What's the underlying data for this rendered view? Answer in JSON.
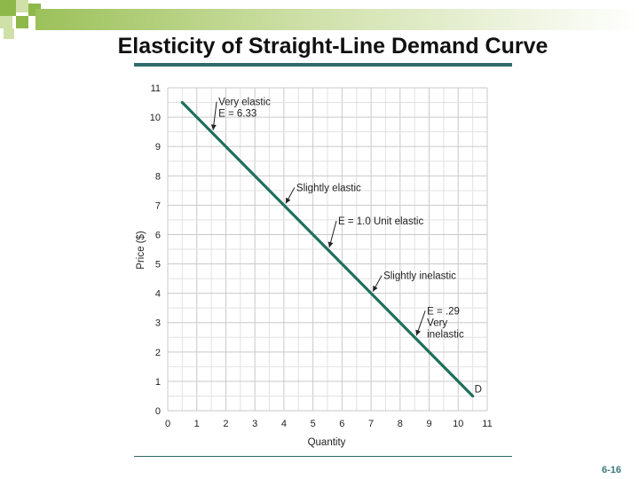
{
  "slide": {
    "title": "Elasticity of Straight-Line Demand Curve",
    "page_number": "6-16",
    "accent_color": "#8fb84a",
    "rule_color": "#2e6b6b"
  },
  "chart_data": {
    "type": "line",
    "xlabel": "Quantity",
    "ylabel": "Price ($)",
    "xlim": [
      0,
      11
    ],
    "ylim": [
      0,
      11
    ],
    "xticks": [
      "0",
      "1",
      "2",
      "3",
      "4",
      "5",
      "6",
      "7",
      "8",
      "9",
      "10",
      "11"
    ],
    "yticks": [
      "0",
      "1",
      "2",
      "3",
      "4",
      "5",
      "6",
      "7",
      "8",
      "9",
      "10",
      "11"
    ],
    "grid": true,
    "minor_grid_step": 0.5,
    "series": [
      {
        "name": "D",
        "color": "#1e6f5c",
        "points": [
          [
            0.5,
            10.5
          ],
          [
            10.5,
            0.5
          ]
        ]
      }
    ],
    "annotations": [
      {
        "id": "very-elastic",
        "lines": [
          "Very elastic",
          "E = 6.33"
        ],
        "target": [
          1.5,
          9.5
        ]
      },
      {
        "id": "slightly-elastic",
        "lines": [
          "Slightly elastic"
        ],
        "target": [
          4.0,
          7.0
        ]
      },
      {
        "id": "unit-elastic",
        "lines": [
          "E = 1.0  Unit elastic"
        ],
        "target": [
          5.5,
          5.5
        ]
      },
      {
        "id": "slightly-inelastic",
        "lines": [
          "Slightly inelastic"
        ],
        "target": [
          7.0,
          4.0
        ]
      },
      {
        "id": "very-inelastic",
        "lines": [
          "E = .29",
          "Very",
          "inelastic"
        ],
        "target": [
          8.5,
          2.5
        ]
      },
      {
        "id": "demand-label",
        "lines": [
          "D"
        ],
        "target": [
          10.5,
          0.5
        ]
      }
    ]
  }
}
